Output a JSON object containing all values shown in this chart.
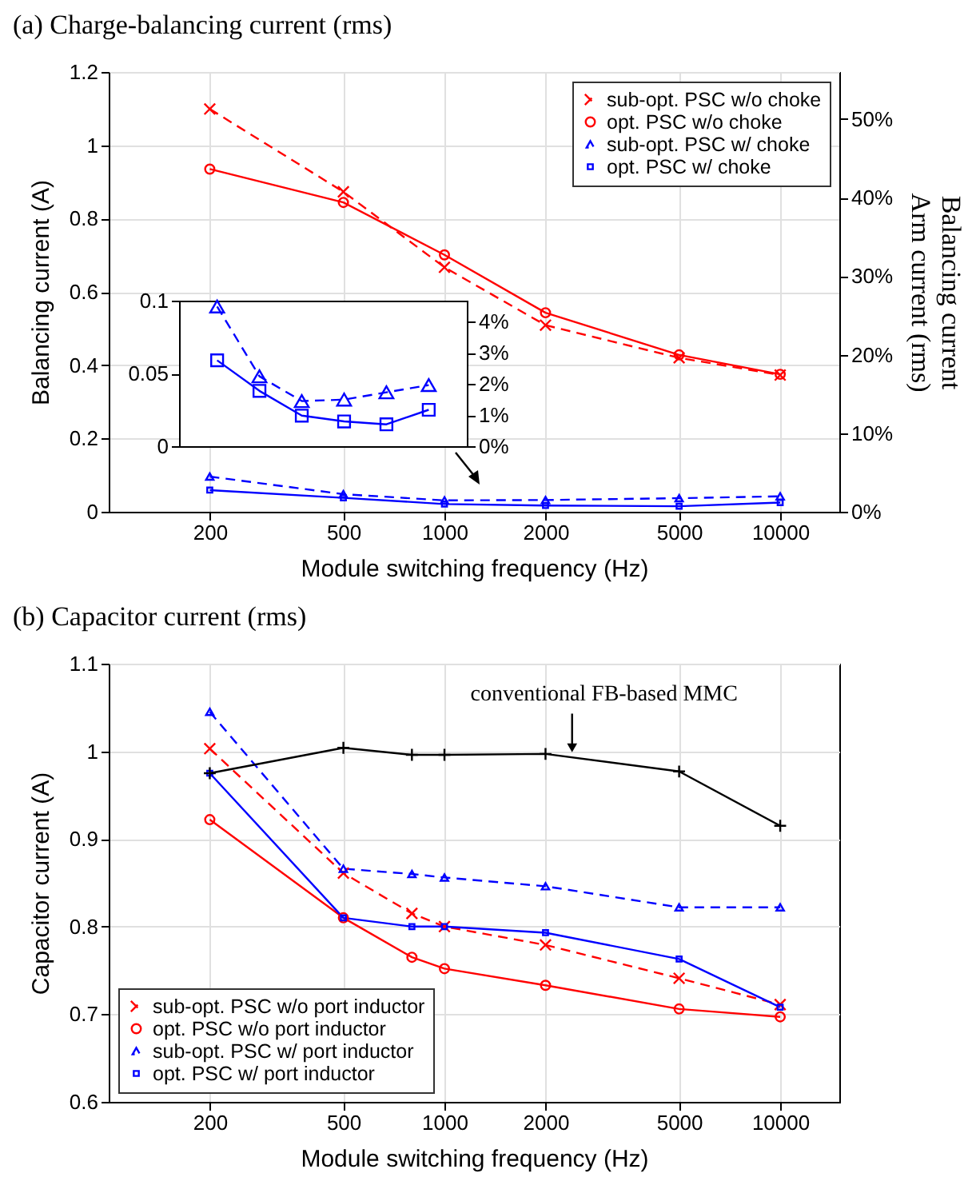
{
  "chart_data": [
    {
      "type": "line",
      "title": "(a) Charge-balancing  current (rms)",
      "xlabel": "Module switching frequency (Hz)",
      "ylabel": "Balancing current (A)",
      "y2label": "Balancing  current\nArm current (rms)",
      "x": [
        200,
        500,
        1000,
        2000,
        5000,
        10000
      ],
      "xlim": [
        100,
        15000
      ],
      "xticks": [
        200,
        500,
        1000,
        2000,
        5000,
        10000
      ],
      "ylim": [
        0,
        1.2
      ],
      "yticks": [
        0,
        0.2,
        0.4,
        0.6,
        0.8,
        1,
        1.2
      ],
      "y2lim": [
        0,
        56
      ],
      "y2ticks": [
        {
          "value": 10,
          "label": "10%"
        },
        {
          "value": 20,
          "label": "20%"
        },
        {
          "value": 30,
          "label": "30%"
        },
        {
          "value": 40,
          "label": "40%"
        },
        {
          "value": 50,
          "label": "50%"
        },
        {
          "value": 0,
          "label": "0%"
        }
      ],
      "log": "x",
      "grid": true,
      "legend": "top right",
      "series": [
        {
          "name": "sub-opt. PSC w/o choke",
          "color": "#ff0000",
          "marker": "cross",
          "line_style": "dashed",
          "values": [
            1.099,
            0.873,
            0.667,
            0.509,
            0.42,
            0.373
          ]
        },
        {
          "name": "opt. PSC w/o choke",
          "color": "#ff0000",
          "marker": "circle",
          "line_style": "solid",
          "values": [
            0.935,
            0.844,
            0.701,
            0.543,
            0.428,
            0.375
          ]
        },
        {
          "name": "sub-opt. PSC w/ choke",
          "color": "#0000ff",
          "marker": "triangle",
          "line_style": "dashed",
          "values": [
            0.096,
            0.048,
            0.031,
            0.032,
            0.037,
            0.042
          ]
        },
        {
          "name": "opt. PSC w/ choke",
          "color": "#0000ff",
          "marker": "square",
          "line_style": "solid",
          "values": [
            0.059,
            0.038,
            0.021,
            0.017,
            0.015,
            0.025
          ]
        }
      ]
    },
    {
      "type": "line",
      "categories": [
        null,
        null,
        null,
        null,
        null,
        null
      ],
      "ylim": [
        0,
        0.1
      ],
      "yticks": [
        0,
        0.05,
        0.1
      ],
      "y2lim": [
        0,
        4.67
      ],
      "y2ticks": [
        {
          "value": 0,
          "label": "0%"
        },
        {
          "value": 1,
          "label": "1%"
        },
        {
          "value": 2,
          "label": "2%"
        },
        {
          "value": 3,
          "label": "3%"
        },
        {
          "value": 4,
          "label": "4%"
        }
      ],
      "log": "x",
      "tick_labels": "y",
      "series": [
        {
          "color": "#0000ff",
          "marker": "triangle",
          "line_style": "dashed",
          "values": [
            0.096,
            0.048,
            0.031,
            0.032,
            0.037,
            0.042
          ]
        },
        {
          "color": "#0000ff",
          "marker": "square",
          "line_style": "solid",
          "values": [
            0.059,
            0.038,
            0.021,
            0.017,
            0.015,
            0.025
          ]
        }
      ]
    },
    {
      "type": "line",
      "title": "(b) Capacitor current (rms)",
      "xlabel": "Module switching frequency (Hz)",
      "ylabel": "Capacitor current (A)",
      "x": [
        200,
        500,
        800,
        1000,
        2000,
        5000,
        10000
      ],
      "xlim": [
        100,
        15000
      ],
      "xticks": [
        200,
        500,
        1000,
        2000,
        5000,
        10000
      ],
      "ylim": [
        0.6,
        1.1
      ],
      "yticks": [
        0.6,
        0.7,
        0.8,
        0.9,
        1,
        1.1
      ],
      "log": "x",
      "grid": true,
      "legend": "bottom left",
      "annotations": [
        {
          "text": "conventional  FB-based MMC",
          "x": 2400,
          "y": 0.998
        }
      ],
      "series": [
        {
          "name": "sub-opt. PSC w/o port inductor",
          "color": "#ff0000",
          "marker": "cross",
          "line_style": "dashed",
          "values": [
            1.003,
            0.861,
            0.815,
            0.8,
            0.779,
            0.741,
            0.711
          ]
        },
        {
          "name": "opt. PSC w/o port inductor",
          "color": "#ff0000",
          "marker": "circle",
          "line_style": "solid",
          "values": [
            0.922,
            0.81,
            0.765,
            0.752,
            0.733,
            0.706,
            0.697
          ]
        },
        {
          "name": "sub-opt. PSC w/ port inductor",
          "color": "#0000ff",
          "marker": "triangle",
          "line_style": "dashed",
          "values": [
            1.045,
            0.866,
            0.86,
            0.856,
            0.846,
            0.822,
            0.822
          ]
        },
        {
          "name": "opt. PSC w/ port inductor",
          "color": "#0000ff",
          "marker": "square",
          "line_style": "solid",
          "values": [
            0.975,
            0.81,
            0.8,
            0.8,
            0.793,
            0.763,
            0.708
          ]
        },
        {
          "color": "#000000",
          "marker": "plus",
          "line_style": "solid",
          "values": [
            0.975,
            1.004,
            0.996,
            0.996,
            0.997,
            0.977,
            0.915
          ]
        }
      ]
    }
  ]
}
